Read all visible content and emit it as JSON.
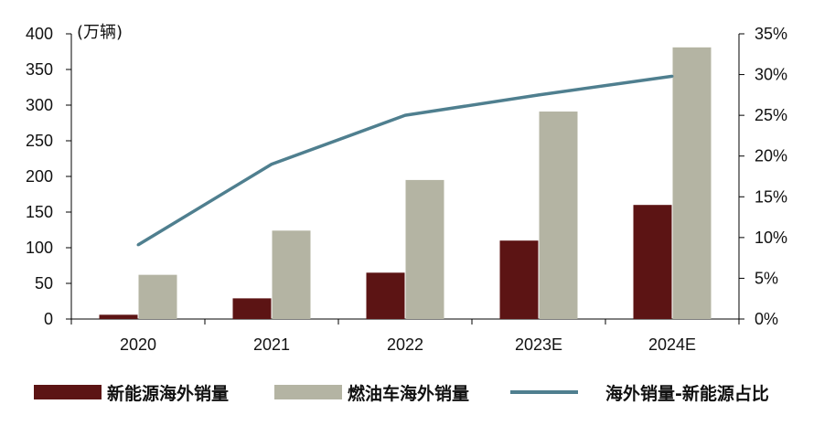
{
  "chart_data": {
    "type": "bar+line",
    "categories": [
      "2020",
      "2021",
      "2022",
      "2023E",
      "2024E"
    ],
    "unit_label": "(万辆)",
    "left_axis": {
      "ticks": [
        "0",
        "50",
        "100",
        "150",
        "200",
        "250",
        "300",
        "350",
        "400"
      ],
      "ylim": [
        0,
        400
      ]
    },
    "right_axis": {
      "ticks": [
        "0%",
        "5%",
        "10%",
        "15%",
        "20%",
        "25%",
        "30%",
        "35%"
      ],
      "ylim": [
        0,
        35
      ]
    },
    "series": [
      {
        "name": "新能源海外销量",
        "type": "bar",
        "axis": "left",
        "color": "#5c1414",
        "values": [
          6,
          29,
          65,
          110,
          160
        ]
      },
      {
        "name": "燃油车海外销量",
        "type": "bar",
        "axis": "left",
        "color": "#b4b4a3",
        "values": [
          62,
          124,
          195,
          291,
          381
        ]
      },
      {
        "name": "海外销量-新能源占比",
        "type": "line",
        "axis": "right",
        "color": "#4f7f8f",
        "values": [
          9.1,
          19.0,
          25.0,
          27.5,
          29.8
        ]
      }
    ]
  }
}
